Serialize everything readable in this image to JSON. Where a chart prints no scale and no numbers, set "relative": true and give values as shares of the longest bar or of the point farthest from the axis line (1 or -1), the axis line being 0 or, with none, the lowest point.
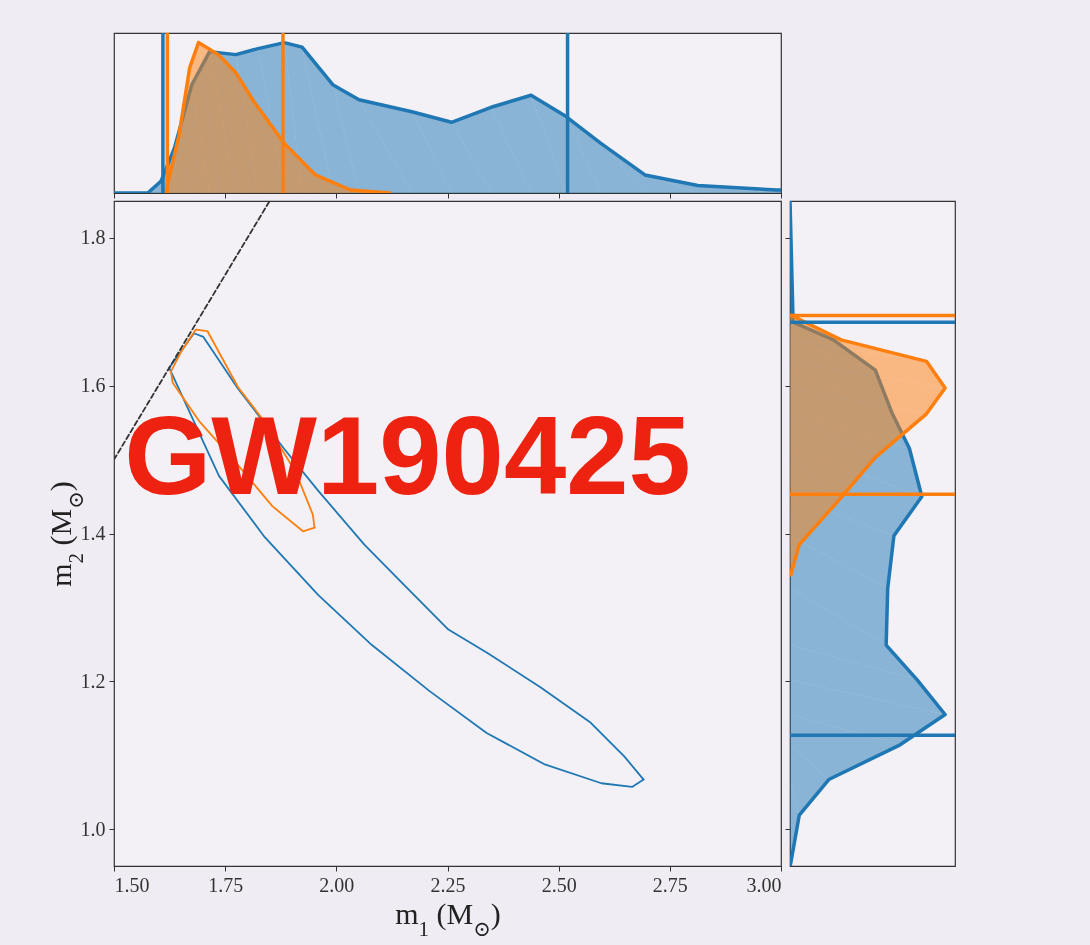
{
  "chart_data": [
    {
      "type": "area",
      "relative": true,
      "xlim": [
        1.5,
        3.0
      ],
      "xticks": [
        1.5,
        1.75,
        2,
        2.25,
        2.5,
        2.75,
        3
      ],
      "tick_labels": false,
      "series": [
        {
          "color": "#1f77b4",
          "x": [
            1.5,
            1.576,
            1.606,
            1.636,
            1.675,
            1.715,
            1.774,
            1.824,
            1.883,
            1.923,
            1.992,
            2.051,
            2.17,
            2.259,
            2.348,
            2.438,
            2.516,
            2.595,
            2.694,
            2.813,
            2.991,
            3.0
          ],
          "values": [
            0,
            0,
            0.08,
            0.3,
            0.72,
            0.94,
            0.92,
            0.96,
            1.0,
            0.97,
            0.72,
            0.62,
            0.54,
            0.47,
            0.57,
            0.65,
            0.51,
            0.33,
            0.12,
            0.05,
            0.02,
            0.02
          ]
        },
        {
          "color": "#ff7f0e",
          "x": [
            1.616,
            1.646,
            1.67,
            1.69,
            1.735,
            1.774,
            1.814,
            1.883,
            1.953,
            2.032,
            2.121
          ],
          "values": [
            0,
            0.38,
            0.83,
            1.0,
            0.92,
            0.8,
            0.61,
            0.33,
            0.12,
            0.02,
            0
          ]
        }
      ],
      "ref_lines": [
        {
          "axis": "x",
          "value": 1.61,
          "color": "#1f77b4"
        },
        {
          "axis": "x",
          "value": 2.52,
          "color": "#1f77b4"
        },
        {
          "axis": "x",
          "value": 1.62,
          "color": "#ff7f0e"
        },
        {
          "axis": "x",
          "value": 1.88,
          "color": "#ff7f0e"
        }
      ]
    },
    {
      "type": "line",
      "xlim": [
        1.5,
        3.0
      ],
      "ylim": [
        0.95,
        1.85
      ],
      "xlabel": "m$_{1}$ (M$_{⊙}$)",
      "ylabel": "m$_{2}$ (M$_{⊙}$)",
      "xticks": [
        {
          "value": 1.5,
          "label": "1.50"
        },
        1.75,
        {
          "value": 2,
          "label": "2.00"
        },
        2.25,
        {
          "value": 2.5,
          "label": "2.50"
        },
        2.75,
        {
          "value": 3,
          "label": "3.00"
        }
      ],
      "yticks": [
        {
          "value": 1,
          "label": "1.0"
        },
        1.2,
        1.4,
        1.6,
        1.8
      ],
      "annotations": [
        "GW190425"
      ],
      "series": [
        {
          "color": "#1f77b4",
          "x": [
            1.624,
            1.68,
            1.701,
            1.779,
            1.882,
            1.959,
            2.063,
            2.14,
            2.252,
            2.338,
            2.459,
            2.57,
            2.648,
            2.691
          ],
          "values": [
            1.624,
            1.671,
            1.666,
            1.596,
            1.515,
            1.458,
            1.385,
            1.338,
            1.27,
            1.239,
            1.192,
            1.145,
            1.098,
            1.067
          ]
        },
        {
          "color": "#1f77b4",
          "x": [
            1.624,
            1.632,
            1.736,
            1.839,
            1.959,
            2.08,
            2.209,
            2.338,
            2.467,
            2.596,
            2.665,
            2.691
          ],
          "values": [
            1.624,
            1.614,
            1.478,
            1.395,
            1.317,
            1.249,
            1.187,
            1.13,
            1.088,
            1.062,
            1.057,
            1.067
          ]
        },
        {
          "color": "#ff7f0e",
          "x": [
            1.628,
            1.65,
            1.684,
            1.71,
            1.779,
            1.839,
            1.908,
            1.947,
            1.951
          ],
          "values": [
            1.619,
            1.645,
            1.676,
            1.674,
            1.598,
            1.551,
            1.484,
            1.426,
            1.408
          ]
        },
        {
          "color": "#ff7f0e",
          "x": [
            1.628,
            1.632,
            1.693,
            1.77,
            1.856,
            1.925,
            1.951
          ],
          "values": [
            1.619,
            1.604,
            1.551,
            1.499,
            1.437,
            1.403,
            1.408
          ]
        },
        {
          "color": "#333333",
          "line_style": "dashed",
          "x": [
            1.5,
            1.85
          ],
          "values": [
            1.5,
            1.85
          ]
        }
      ]
    },
    {
      "type": "area",
      "orientation": "horizontal",
      "relative": true,
      "ylim": [
        0.95,
        1.85
      ],
      "yticks": [
        1,
        1.2,
        1.4,
        1.6,
        1.8
      ],
      "tick_labels": false,
      "series": [
        {
          "color": "#1f77b4",
          "x": [
            0.95,
            0.954,
            1.019,
            1.067,
            1.114,
            1.155,
            1.202,
            1.249,
            1.326,
            1.397,
            1.45,
            1.515,
            1.562,
            1.621,
            1.662,
            1.686,
            1.85
          ],
          "values": [
            0,
            0.005,
            0.06,
            0.25,
            0.71,
            1.0,
            0.82,
            0.62,
            0.63,
            0.67,
            0.85,
            0.77,
            0.66,
            0.55,
            0.28,
            0.02,
            0.0
          ]
        },
        {
          "color": "#ff7f0e",
          "x": [
            1.344,
            1.385,
            1.444,
            1.503,
            1.562,
            1.597,
            1.633,
            1.662,
            1.695
          ],
          "values": [
            0.005,
            0.06,
            0.31,
            0.55,
            0.88,
            1.0,
            0.88,
            0.33,
            0.01
          ]
        }
      ],
      "ref_lines": [
        {
          "axis": "y",
          "value": 1.695,
          "color": "#ff7f0e"
        },
        {
          "axis": "y",
          "value": 1.686,
          "color": "#1f77b4"
        },
        {
          "axis": "y",
          "value": 1.453,
          "color": "#ff7f0e"
        },
        {
          "axis": "y",
          "value": 1.127,
          "color": "#1f77b4"
        }
      ]
    }
  ]
}
